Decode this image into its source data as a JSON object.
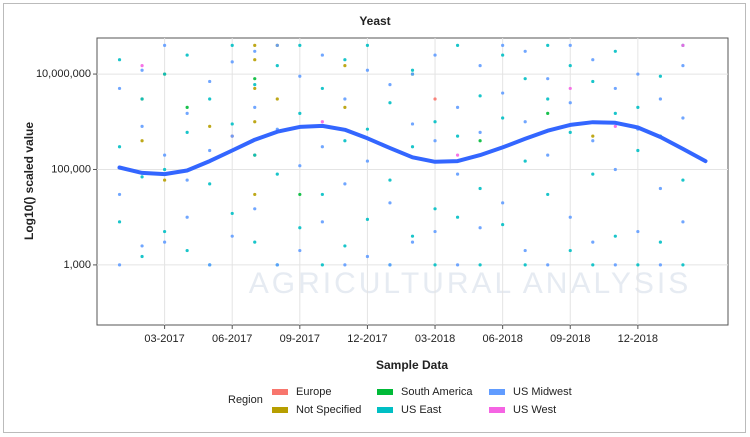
{
  "chart_data": {
    "type": "scatter",
    "title": "Yeast",
    "x_label": "Sample Data",
    "y_label": "Log10() scaled value",
    "watermark": "AGRICULTURAL ANALYSIS",
    "legend_title": "Region",
    "ylog": true,
    "grid": true,
    "ylim": [
      55,
      57000000
    ],
    "yticks": [
      {
        "value": 1000,
        "label": "1,000"
      },
      {
        "value": 100000,
        "label": "100,000"
      },
      {
        "value": 10000000,
        "label": "10,000,000"
      }
    ],
    "xlim": [
      "2016-12",
      "2019-04"
    ],
    "xticks": [
      {
        "value": "2017-03",
        "label": "03-2017"
      },
      {
        "value": "2017-06",
        "label": "06-2017"
      },
      {
        "value": "2017-09",
        "label": "09-2017"
      },
      {
        "value": "2017-12",
        "label": "12-2017"
      },
      {
        "value": "2018-03",
        "label": "03-2018"
      },
      {
        "value": "2018-06",
        "label": "06-2018"
      },
      {
        "value": "2018-09",
        "label": "09-2018"
      },
      {
        "value": "2018-12",
        "label": "12-2018"
      }
    ],
    "series": [
      {
        "name": "Europe",
        "color": "#f8766d",
        "x": [
          "2017-06",
          "2018-03"
        ],
        "values": [
          500000,
          3000000
        ]
      },
      {
        "name": "Not Specified",
        "color": "#b79f00",
        "x": [
          "2017-02",
          "2017-02",
          "2017-03",
          "2017-03",
          "2017-05",
          "2017-07",
          "2017-07",
          "2017-07",
          "2017-07",
          "2017-07",
          "2017-07",
          "2017-08",
          "2017-08",
          "2017-11",
          "2017-11",
          "2018-10"
        ],
        "values": [
          3000000,
          400000,
          10000000,
          60000,
          800000,
          40000000,
          20000000,
          5000000,
          1000000,
          200000,
          30000,
          40000000,
          3000000,
          15000000,
          2000000,
          500000
        ]
      },
      {
        "name": "South America",
        "color": "#00ba38",
        "x": [
          "2017-04",
          "2017-07",
          "2017-09",
          "2018-02",
          "2018-05",
          "2018-08"
        ],
        "values": [
          2000000,
          8000000,
          30000,
          10000000,
          400000,
          1500000
        ]
      },
      {
        "name": "US East",
        "color": "#00bfc4",
        "x": [
          "2017-01",
          "2017-01",
          "2017-01",
          "2017-02",
          "2017-02",
          "2017-02",
          "2017-03",
          "2017-03",
          "2017-03",
          "2017-04",
          "2017-04",
          "2017-04",
          "2017-05",
          "2017-05",
          "2017-05",
          "2017-06",
          "2017-06",
          "2017-06",
          "2017-07",
          "2017-07",
          "2017-07",
          "2017-08",
          "2017-08",
          "2017-08",
          "2017-09",
          "2017-09",
          "2017-09",
          "2017-10",
          "2017-10",
          "2017-10",
          "2017-11",
          "2017-11",
          "2017-11",
          "2017-12",
          "2017-12",
          "2017-12",
          "2018-01",
          "2018-01",
          "2018-01",
          "2018-02",
          "2018-02",
          "2018-02",
          "2018-03",
          "2018-03",
          "2018-03",
          "2018-04",
          "2018-04",
          "2018-04",
          "2018-05",
          "2018-05",
          "2018-05",
          "2018-06",
          "2018-06",
          "2018-06",
          "2018-07",
          "2018-07",
          "2018-07",
          "2018-08",
          "2018-08",
          "2018-08",
          "2018-09",
          "2018-09",
          "2018-09",
          "2018-10",
          "2018-10",
          "2018-10",
          "2018-11",
          "2018-11",
          "2018-11",
          "2018-12",
          "2018-12",
          "2018-12",
          "2019-01",
          "2019-01",
          "2019-01",
          "2019-02",
          "2019-02",
          "2019-02"
        ],
        "values": [
          300000,
          8000,
          20000000,
          3000000,
          1500,
          70000,
          10000000,
          100000,
          5000,
          600000,
          25000000,
          2000,
          50000,
          3000000,
          1000,
          40000000,
          900000,
          12000,
          6000000,
          200000,
          3000,
          15000000,
          80000,
          1000,
          40000000,
          1500000,
          6000,
          5000000,
          30000,
          1000,
          20000000,
          400000,
          2500,
          700000,
          9000,
          40000000,
          2500000,
          60000,
          1000,
          12000000,
          300000,
          4000,
          1000000,
          15000,
          1000,
          40000000,
          500000,
          10000,
          3500000,
          40000,
          1000,
          25000000,
          1200000,
          7000,
          8000000,
          150000,
          1000,
          40000000,
          3000000,
          30000,
          15000000,
          600000,
          2000,
          7000000,
          80000,
          1000,
          30000000,
          1500000,
          4000,
          2000000,
          250000,
          1000,
          9000000,
          500000,
          3000,
          40000000,
          60000,
          1000
        ]
      },
      {
        "name": "US Midwest",
        "color": "#619cff",
        "x": [
          "2017-01",
          "2017-01",
          "2017-01",
          "2017-02",
          "2017-02",
          "2017-02",
          "2017-03",
          "2017-03",
          "2017-03",
          "2017-04",
          "2017-04",
          "2017-04",
          "2017-05",
          "2017-05",
          "2017-05",
          "2017-06",
          "2017-06",
          "2017-06",
          "2017-07",
          "2017-07",
          "2017-07",
          "2017-08",
          "2017-08",
          "2017-08",
          "2017-09",
          "2017-09",
          "2017-09",
          "2017-10",
          "2017-10",
          "2017-10",
          "2017-11",
          "2017-11",
          "2017-11",
          "2017-12",
          "2017-12",
          "2017-12",
          "2018-01",
          "2018-01",
          "2018-01",
          "2018-02",
          "2018-02",
          "2018-02",
          "2018-03",
          "2018-03",
          "2018-03",
          "2018-04",
          "2018-04",
          "2018-04",
          "2018-05",
          "2018-05",
          "2018-05",
          "2018-06",
          "2018-06",
          "2018-06",
          "2018-07",
          "2018-07",
          "2018-07",
          "2018-08",
          "2018-08",
          "2018-08",
          "2018-09",
          "2018-09",
          "2018-09",
          "2018-10",
          "2018-10",
          "2018-10",
          "2018-11",
          "2018-11",
          "2018-11",
          "2018-12",
          "2018-12",
          "2018-12",
          "2019-01",
          "2019-01",
          "2019-01",
          "2019-02",
          "2019-02",
          "2019-02"
        ],
        "values": [
          5000000,
          30000,
          1000,
          800000,
          12000000,
          2500,
          200000,
          3000,
          40000000,
          1500000,
          10000,
          60000,
          7000000,
          250000,
          1000,
          18000000,
          500000,
          4000,
          2000000,
          30000000,
          15000,
          40000000,
          700000,
          1000,
          9000000,
          120000,
          2000,
          25000000,
          300000,
          8000,
          3000000,
          50000,
          1000,
          12000000,
          150000,
          1500,
          6000000,
          20000,
          1000,
          900000,
          10000000,
          3000,
          400000,
          5000,
          25000000,
          2000000,
          80000,
          1000,
          15000000,
          600000,
          6000,
          4000000,
          40000000,
          20000,
          30000000,
          1000000,
          2000,
          8000000,
          200000,
          1000,
          40000000,
          2500000,
          10000,
          20000000,
          400000,
          3000,
          5000000,
          100000,
          1000,
          10000000,
          700000,
          5000,
          3000000,
          40000,
          1000,
          1200000,
          15000000,
          8000
        ]
      },
      {
        "name": "US West",
        "color": "#f564e3",
        "x": [
          "2017-02",
          "2017-10",
          "2018-04",
          "2018-09",
          "2018-11",
          "2019-02"
        ],
        "values": [
          15000000,
          1000000,
          200000,
          5000000,
          800000,
          40000000
        ]
      }
    ],
    "trend": {
      "color": "#3366ff",
      "x": [
        "2017-01",
        "2017-02",
        "2017-03",
        "2017-04",
        "2017-05",
        "2017-06",
        "2017-07",
        "2017-08",
        "2017-09",
        "2017-10",
        "2017-11",
        "2017-12",
        "2018-01",
        "2018-02",
        "2018-03",
        "2018-04",
        "2018-05",
        "2018-06",
        "2018-07",
        "2018-08",
        "2018-09",
        "2018-10",
        "2018-11",
        "2018-12",
        "2019-01",
        "2019-02",
        "2019-03"
      ],
      "values": [
        110000,
        85000,
        80000,
        95000,
        150000,
        250000,
        420000,
        620000,
        780000,
        820000,
        680000,
        450000,
        280000,
        180000,
        145000,
        150000,
        200000,
        290000,
        440000,
        650000,
        860000,
        980000,
        950000,
        760000,
        480000,
        270000,
        150000
      ]
    }
  }
}
